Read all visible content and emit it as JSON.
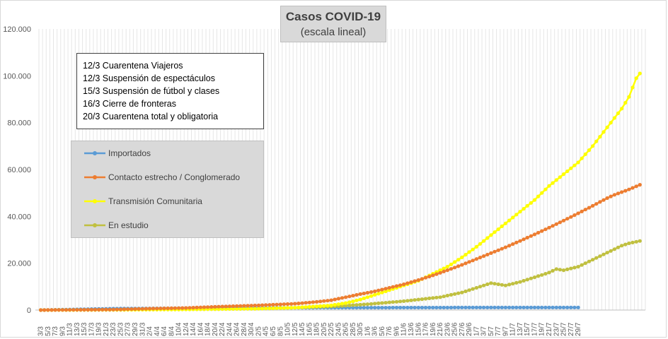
{
  "chart_data": {
    "type": "line",
    "title": "Casos  COVID-19",
    "subtitle": "(escala lineal)",
    "ylim": [
      0,
      120000
    ],
    "yticks": [
      "0",
      "20.000",
      "40.000",
      "60.000",
      "80.000",
      "100.000",
      "120.000"
    ],
    "ytick_values": [
      0,
      20000,
      40000,
      60000,
      80000,
      100000,
      120000
    ],
    "xtick_labels": [
      "3/3",
      "5/3",
      "7/3",
      "9/3",
      "11/3",
      "13/3",
      "15/3",
      "17/3",
      "19/3",
      "21/3",
      "23/3",
      "25/3",
      "27/3",
      "29/3",
      "31/3",
      "2/4",
      "4/4",
      "6/4",
      "8/4",
      "10/4",
      "12/4",
      "14/4",
      "16/4",
      "18/4",
      "20/4",
      "22/4",
      "24/4",
      "26/4",
      "28/4",
      "30/4",
      "2/5",
      "4/5",
      "6/5",
      "8/5",
      "10/5",
      "12/5",
      "14/5",
      "16/5",
      "18/5",
      "20/5",
      "22/5",
      "24/5",
      "26/5",
      "28/5",
      "30/5",
      "1/6",
      "3/6",
      "5/6",
      "7/6",
      "9/6",
      "11/6",
      "13/6",
      "15/6",
      "17/6",
      "19/6",
      "21/6",
      "23/6",
      "25/6",
      "27/6",
      "29/6",
      "1/7",
      "3/7",
      "5/7",
      "7/7",
      "9/7",
      "11/7",
      "13/7",
      "15/7",
      "17/7",
      "19/7",
      "21/7",
      "23/7",
      "25/7",
      "27/7",
      "29/7"
    ],
    "grid": "vertical",
    "legend_position": "left",
    "series": [
      {
        "name": "Importados",
        "color": "#5b9bd5",
        "points": [
          [
            0,
            0
          ],
          [
            20,
            600
          ],
          [
            40,
            800
          ],
          [
            60,
            900
          ],
          [
            80,
            1000
          ],
          [
            100,
            1050
          ],
          [
            120,
            1080
          ],
          [
            140,
            1100
          ],
          [
            148,
            1100
          ]
        ]
      },
      {
        "name": "Contacto estrecho / Conglomerado",
        "color": "#ed7d31",
        "points": [
          [
            0,
            0
          ],
          [
            20,
            200
          ],
          [
            30,
            600
          ],
          [
            40,
            900
          ],
          [
            50,
            1500
          ],
          [
            60,
            2000
          ],
          [
            70,
            2700
          ],
          [
            76,
            3500
          ],
          [
            80,
            4200
          ],
          [
            84,
            5500
          ],
          [
            88,
            6800
          ],
          [
            92,
            8000
          ],
          [
            96,
            9500
          ],
          [
            100,
            11000
          ],
          [
            104,
            12800
          ],
          [
            108,
            14800
          ],
          [
            112,
            17000
          ],
          [
            116,
            19300
          ],
          [
            120,
            21800
          ],
          [
            124,
            24300
          ],
          [
            128,
            26800
          ],
          [
            132,
            29500
          ],
          [
            136,
            32300
          ],
          [
            140,
            35200
          ],
          [
            144,
            38200
          ],
          [
            148,
            41300
          ],
          [
            152,
            44500
          ],
          [
            156,
            47800
          ],
          [
            158,
            49200
          ],
          [
            162,
            51500
          ],
          [
            165,
            53500
          ]
        ]
      },
      {
        "name": "Transmisión Comunitaria",
        "color": "#ffff00",
        "points": [
          [
            0,
            0
          ],
          [
            20,
            100
          ],
          [
            40,
            300
          ],
          [
            60,
            600
          ],
          [
            70,
            1000
          ],
          [
            80,
            2000
          ],
          [
            84,
            3000
          ],
          [
            88,
            4500
          ],
          [
            92,
            6500
          ],
          [
            96,
            8500
          ],
          [
            100,
            10500
          ],
          [
            104,
            12500
          ],
          [
            108,
            15500
          ],
          [
            112,
            18500
          ],
          [
            116,
            22500
          ],
          [
            120,
            27000
          ],
          [
            124,
            32000
          ],
          [
            128,
            37000
          ],
          [
            132,
            42000
          ],
          [
            136,
            47000
          ],
          [
            140,
            53000
          ],
          [
            144,
            58000
          ],
          [
            148,
            63000
          ],
          [
            152,
            70000
          ],
          [
            156,
            78000
          ],
          [
            158,
            82000
          ],
          [
            160,
            86000
          ],
          [
            162,
            91000
          ],
          [
            164,
            99000
          ],
          [
            165,
            101000
          ]
        ]
      },
      {
        "name": "En estudio",
        "color": "#c0c040",
        "points": [
          [
            0,
            0
          ],
          [
            20,
            100
          ],
          [
            40,
            300
          ],
          [
            60,
            600
          ],
          [
            70,
            1000
          ],
          [
            80,
            1500
          ],
          [
            90,
            2500
          ],
          [
            100,
            3800
          ],
          [
            110,
            5500
          ],
          [
            116,
            7500
          ],
          [
            120,
            9500
          ],
          [
            124,
            11500
          ],
          [
            128,
            10500
          ],
          [
            132,
            12000
          ],
          [
            136,
            14000
          ],
          [
            140,
            16000
          ],
          [
            142,
            17500
          ],
          [
            144,
            17000
          ],
          [
            148,
            18500
          ],
          [
            152,
            21500
          ],
          [
            156,
            24500
          ],
          [
            158,
            26000
          ],
          [
            160,
            27500
          ],
          [
            162,
            28500
          ],
          [
            165,
            29500
          ]
        ]
      }
    ],
    "annotations": [
      "12/3 Cuarentena Viajeros",
      "12/3 Suspensión de espectáculos",
      "15/3 Suspensión de fútbol y clases",
      "16/3 Cierre de fronteras",
      "20/3 Cuarentena total y obligatoria"
    ]
  }
}
